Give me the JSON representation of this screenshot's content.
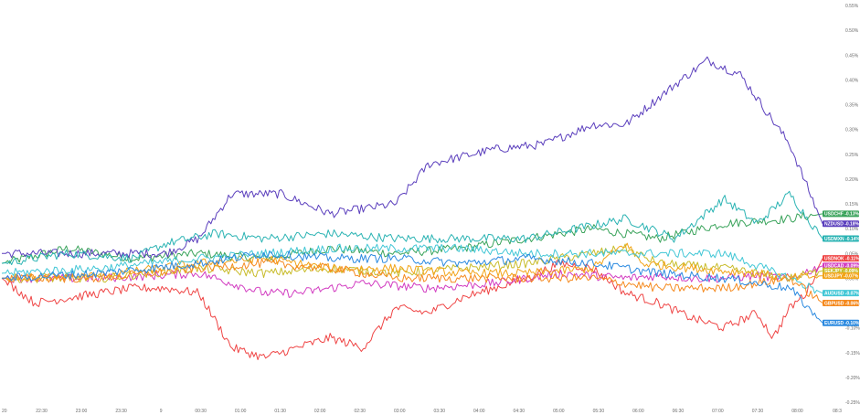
{
  "chart_data": {
    "type": "line",
    "x_ticks": [
      "20",
      "22:30",
      "23:00",
      "23:30",
      "9",
      "00:30",
      "01:00",
      "01:30",
      "02:00",
      "02:30",
      "03:00",
      "03:30",
      "04:00",
      "04:30",
      "05:00",
      "05:30",
      "06:00",
      "06:30",
      "07:00",
      "07:30",
      "08:00",
      "08:3"
    ],
    "y_ticks": [
      "0.55%",
      "0.50%",
      "0.45%",
      "0.40%",
      "0.35%",
      "0.30%",
      "0.25%",
      "0.20%",
      "0.15%",
      "0.10%",
      "0.05%",
      "0.00%",
      "-0.05%",
      "-0.10%",
      "-0.15%",
      "-0.20%",
      "-0.25%"
    ],
    "ylim": [
      -0.25,
      0.55
    ],
    "grid": false,
    "series": [
      {
        "name": "USDCHF",
        "label": "USDCHF  -0.13%",
        "color": "#3aa35b",
        "last": 0.13,
        "x": [
          0,
          4,
          8,
          12,
          16,
          20,
          24,
          28,
          32,
          36,
          40,
          44,
          48,
          50
        ],
        "y": [
          0.03,
          0.06,
          0.04,
          0.05,
          0.04,
          0.06,
          0.05,
          0.06,
          0.08,
          0.1,
          0.08,
          0.11,
          0.12,
          0.13
        ]
      },
      {
        "name": "NZDUSD",
        "label": "NZDUSD  -0.18%",
        "color": "#5b3fbd",
        "last": 0.11,
        "x": [
          0,
          4,
          7,
          10,
          12,
          14,
          17,
          20,
          24,
          26,
          30,
          33,
          36,
          38,
          41,
          43,
          45,
          48,
          50
        ],
        "y": [
          0.05,
          0.05,
          0.05,
          0.05,
          0.08,
          0.17,
          0.17,
          0.13,
          0.15,
          0.23,
          0.26,
          0.27,
          0.31,
          0.31,
          0.39,
          0.44,
          0.41,
          0.27,
          0.11
        ]
      },
      {
        "name": "USDMXN",
        "label": "USDMXN  -0.14%",
        "color": "#2ab3b3",
        "last": 0.08,
        "x": [
          0,
          4,
          8,
          10,
          13,
          16,
          20,
          24,
          28,
          32,
          35,
          38,
          41,
          44,
          46,
          48,
          50
        ],
        "y": [
          0.03,
          0.05,
          0.04,
          0.07,
          0.09,
          0.08,
          0.09,
          0.08,
          0.08,
          0.08,
          0.1,
          0.12,
          0.08,
          0.16,
          0.11,
          0.17,
          0.08
        ]
      },
      {
        "name": "USDNOK",
        "label": "USDNOK  -0.11%",
        "color": "#ef4545",
        "last": 0.04,
        "x": [
          0,
          2,
          4,
          6,
          8,
          10,
          12,
          14,
          16,
          18,
          20,
          22,
          24,
          26,
          28,
          30,
          32,
          34,
          36,
          38,
          40,
          42,
          44,
          46,
          47,
          48,
          49,
          50
        ],
        "y": [
          0.0,
          -0.05,
          -0.04,
          -0.03,
          -0.02,
          -0.02,
          -0.03,
          -0.14,
          -0.16,
          -0.14,
          -0.12,
          -0.14,
          -0.06,
          -0.07,
          -0.04,
          -0.02,
          0.0,
          0.03,
          0.02,
          -0.03,
          -0.05,
          -0.08,
          -0.1,
          -0.07,
          -0.12,
          -0.06,
          -0.03,
          0.04
        ]
      },
      {
        "name": "USDCAD",
        "label": "USDCAD  -0.09%",
        "color": "#d23cc1",
        "last": 0.025,
        "x": [
          0,
          6,
          12,
          16,
          18,
          22,
          26,
          30,
          34,
          38,
          40,
          42,
          44,
          46,
          48,
          50
        ],
        "y": [
          0.0,
          0.0,
          0.01,
          -0.03,
          -0.03,
          -0.01,
          -0.02,
          -0.01,
          0.01,
          0.0,
          0.005,
          0.0,
          0.0,
          0.005,
          0.0,
          0.025
        ]
      },
      {
        "name": "SEKJPY",
        "label": "SEKJPY  -0.09%",
        "color": "#c8bc2a",
        "last": 0.015,
        "x": [
          0,
          6,
          12,
          16,
          20,
          24,
          28,
          32,
          36,
          38,
          40,
          44,
          48,
          50
        ],
        "y": [
          0.0,
          0.0,
          0.02,
          0.01,
          0.02,
          0.01,
          0.02,
          0.03,
          0.05,
          0.06,
          0.03,
          0.02,
          0.0,
          0.015
        ]
      },
      {
        "name": "USDJPY",
        "label": "USDJPY  -0.07%",
        "color": "#f2a418",
        "last": 0.005,
        "x": [
          0,
          6,
          12,
          16,
          20,
          24,
          28,
          32,
          36,
          38,
          39,
          42,
          46,
          48,
          50
        ],
        "y": [
          0.0,
          0.005,
          0.03,
          0.04,
          0.02,
          0.02,
          0.01,
          0.01,
          0.02,
          0.07,
          0.03,
          0.02,
          0.01,
          0.0,
          0.005
        ]
      },
      {
        "name": "AUDUSD",
        "label": "AUDUSD  -0.07%",
        "color": "#43c7d6",
        "last": -0.03,
        "x": [
          0,
          6,
          12,
          16,
          20,
          24,
          28,
          32,
          36,
          40,
          44,
          48,
          50
        ],
        "y": [
          0.01,
          0.02,
          0.04,
          0.05,
          0.06,
          0.06,
          0.06,
          0.05,
          0.05,
          0.05,
          0.05,
          0.0,
          -0.03
        ]
      },
      {
        "name": "GBPUSD",
        "label": "GBPUSD  -0.06%",
        "color": "#f58a1f",
        "last": -0.05,
        "x": [
          0,
          6,
          12,
          16,
          20,
          24,
          28,
          32,
          36,
          40,
          44,
          48,
          50
        ],
        "y": [
          0.0,
          0.0,
          0.02,
          0.03,
          0.02,
          0.0,
          0.0,
          0.0,
          0.0,
          -0.02,
          -0.02,
          0.0,
          -0.05
        ]
      },
      {
        "name": "EURUSD",
        "label": "EURUSD  -0.10%",
        "color": "#2b8ae0",
        "last": -0.09,
        "x": [
          0,
          6,
          12,
          16,
          20,
          24,
          28,
          32,
          36,
          40,
          44,
          48,
          50
        ],
        "y": [
          0.0,
          0.01,
          0.03,
          0.05,
          0.04,
          0.04,
          0.03,
          0.04,
          0.03,
          0.01,
          0.0,
          -0.02,
          -0.09
        ]
      }
    ]
  }
}
